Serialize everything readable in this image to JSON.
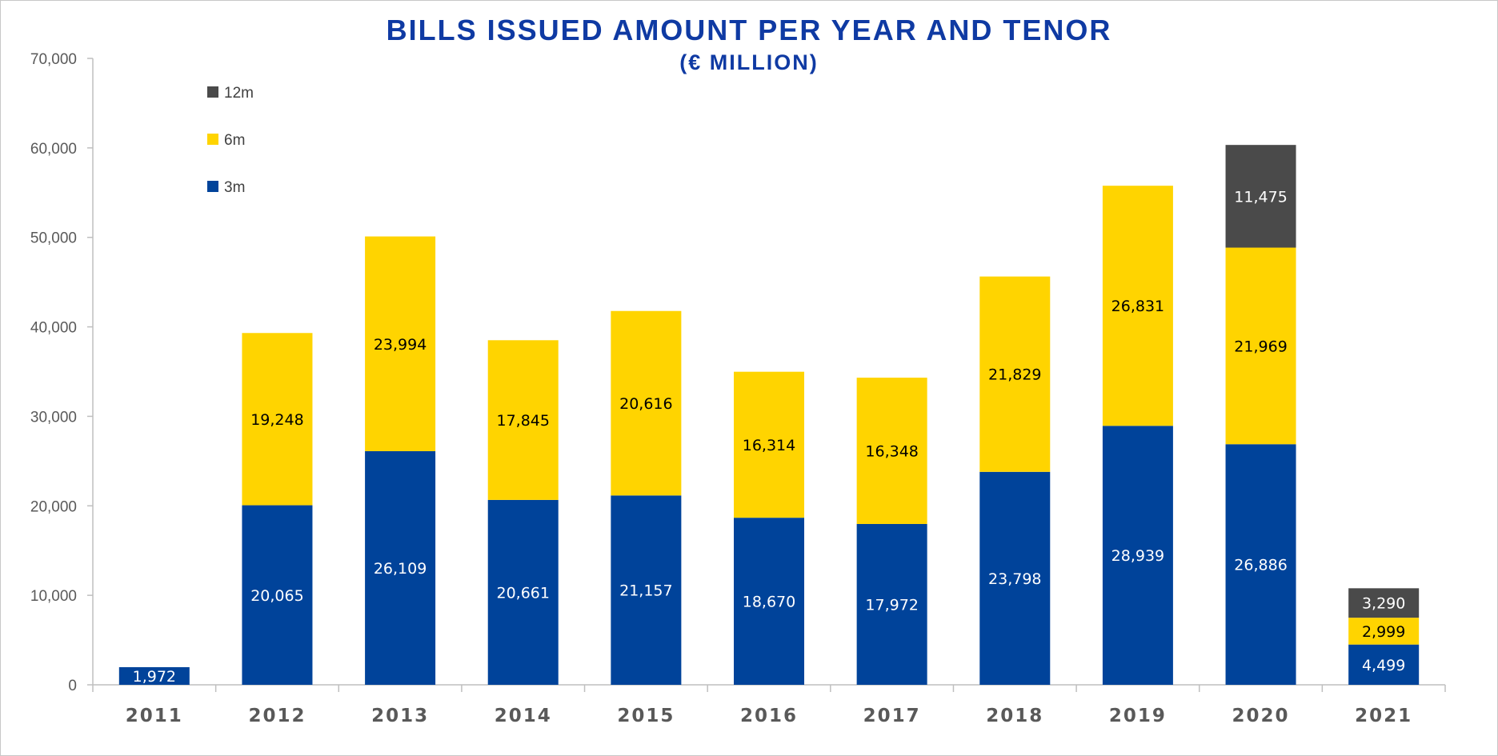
{
  "chart_data": {
    "type": "bar",
    "stacked": true,
    "title": "BILLS ISSUED AMOUNT PER YEAR AND TENOR",
    "subtitle": "(€ MILLION)",
    "xlabel": "",
    "ylabel": "",
    "ylim": [
      0,
      70000
    ],
    "yticks": [
      0,
      10000,
      20000,
      30000,
      40000,
      50000,
      60000,
      70000
    ],
    "ytick_labels": [
      "0",
      "10,000",
      "20,000",
      "30,000",
      "40,000",
      "50,000",
      "60,000",
      "70,000"
    ],
    "grid": false,
    "legend_position": "top-left",
    "categories": [
      "2011",
      "2012",
      "2013",
      "2014",
      "2015",
      "2016",
      "2017",
      "2018",
      "2019",
      "2020",
      "2021"
    ],
    "series": [
      {
        "name": "3m",
        "color": "#00439a",
        "label_color": "#ffffff",
        "values": [
          1972,
          20065,
          26109,
          20661,
          21157,
          18670,
          17972,
          23798,
          28939,
          26886,
          4499
        ],
        "labels": [
          "1,972",
          "20,065",
          "26,109",
          "20,661",
          "21,157",
          "18,670",
          "17,972",
          "23,798",
          "28,939",
          "26,886",
          "4,499"
        ]
      },
      {
        "name": "6m",
        "color": "#ffd400",
        "label_color": "#000000",
        "values": [
          0,
          19248,
          23994,
          17845,
          20616,
          16314,
          16348,
          21829,
          26831,
          21969,
          2999
        ],
        "labels": [
          "",
          "19,248",
          "23,994",
          "17,845",
          "20,616",
          "16,314",
          "16,348",
          "21,829",
          "26,831",
          "21,969",
          "2,999"
        ]
      },
      {
        "name": "12m",
        "color": "#4a4a4a",
        "label_color": "#ffffff",
        "values": [
          0,
          0,
          0,
          0,
          0,
          0,
          0,
          0,
          0,
          11475,
          3290
        ],
        "labels": [
          "",
          "",
          "",
          "",
          "",
          "",
          "",
          "",
          "",
          "11,475",
          "3,290"
        ]
      }
    ]
  }
}
